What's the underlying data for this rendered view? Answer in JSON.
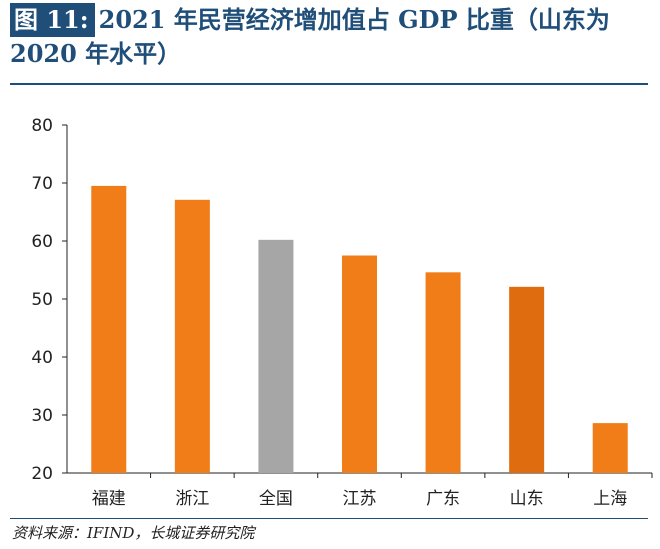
{
  "header": {
    "figure_label": "图 11:",
    "title_line1": "2021 年民营经济增加值占 GDP 比重（山东为",
    "title_line2": "2020 年水平）"
  },
  "source_text": "资料来源：IFIND，长城证券研究院",
  "colors": {
    "title": "#1f4e79",
    "bar_default": "#f07d17",
    "bar_national": "#a6a6a6",
    "bar_shandong": "#e06c10",
    "axis": "#222222"
  },
  "chart_data": {
    "type": "bar",
    "title": "2021 年民营经济增加值占 GDP 比重（山东为 2020 年水平）",
    "xlabel": "",
    "ylabel": "",
    "categories": [
      "福建",
      "浙江",
      "全国",
      "江苏",
      "广东",
      "山东",
      "上海"
    ],
    "values": [
      69.5,
      67.1,
      60.2,
      57.5,
      54.6,
      52.1,
      28.6
    ],
    "ylim": [
      20,
      80
    ],
    "yticks": [
      20,
      30,
      40,
      50,
      60,
      70,
      80
    ],
    "grid": false,
    "legend": "none"
  }
}
